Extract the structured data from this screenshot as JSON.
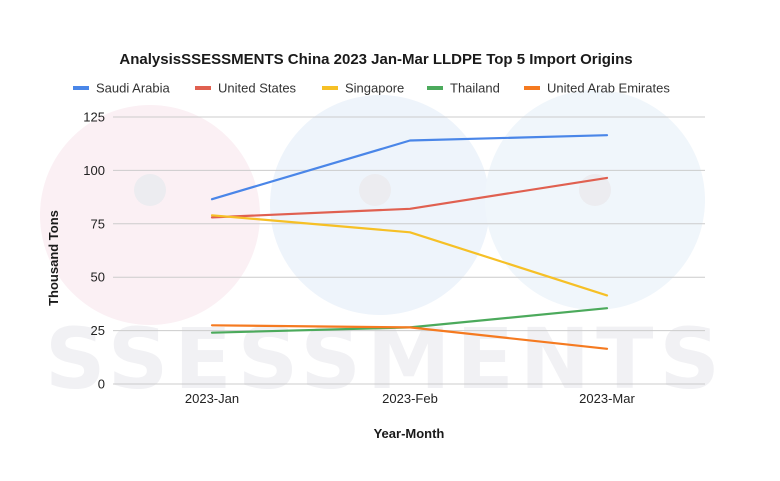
{
  "chart_data": {
    "type": "line",
    "title": "AnalysisSSESSMENTS China 2023 Jan-Mar LLDPE Top 5 Import Origins",
    "xlabel": "Year-Month",
    "ylabel": "Thousand Tons",
    "categories": [
      "2023-Jan",
      "2023-Feb",
      "2023-Mar"
    ],
    "ylim": [
      0,
      125
    ],
    "yticks": [
      0,
      25,
      50,
      75,
      100,
      125
    ],
    "grid": true,
    "legend_position": "top",
    "series": [
      {
        "name": "Saudi Arabia",
        "color": "#4a86e8",
        "values": [
          86.5,
          114,
          116.5
        ]
      },
      {
        "name": "United States",
        "color": "#e06050",
        "values": [
          78,
          82,
          96.5
        ]
      },
      {
        "name": "Singapore",
        "color": "#f6c026",
        "values": [
          79,
          71,
          41.5
        ]
      },
      {
        "name": "Thailand",
        "color": "#4caa5c",
        "values": [
          24,
          26.5,
          35.5
        ]
      },
      {
        "name": "United Arab Emirates",
        "color": "#f57a20",
        "values": [
          27.5,
          26.5,
          16.5
        ]
      }
    ]
  },
  "watermark": {
    "text": "SSESSMENTS"
  }
}
